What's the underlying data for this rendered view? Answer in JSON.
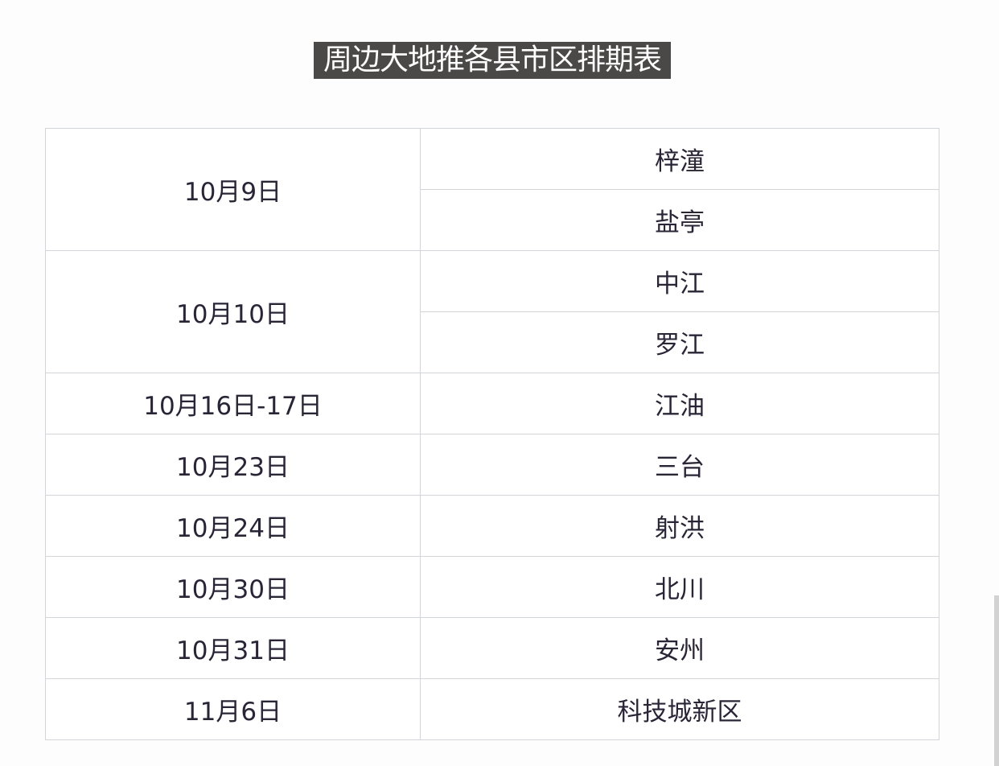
{
  "title": "周边大地推各县市区排期表",
  "rows": [
    {
      "date": "10月9日",
      "places": [
        "梓潼",
        "盐亭"
      ]
    },
    {
      "date": "10月10日",
      "places": [
        "中江",
        "罗江"
      ]
    },
    {
      "date": "10月16日-17日",
      "places": [
        "江油"
      ]
    },
    {
      "date": "10月23日",
      "places": [
        "三台"
      ]
    },
    {
      "date": "10月24日",
      "places": [
        "射洪"
      ]
    },
    {
      "date": "10月30日",
      "places": [
        "北川"
      ]
    },
    {
      "date": "10月31日",
      "places": [
        "安州"
      ]
    },
    {
      "date": "11月6日",
      "places": [
        "科技城新区"
      ]
    }
  ]
}
